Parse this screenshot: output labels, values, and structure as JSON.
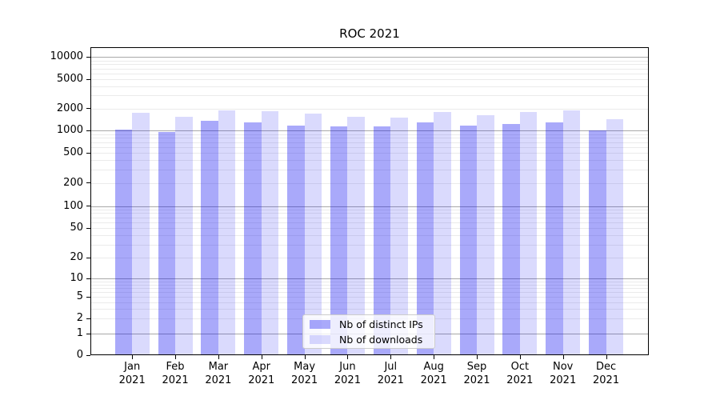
{
  "chart_data": {
    "type": "bar",
    "title": "ROC 2021",
    "categories": [
      "Jan",
      "Feb",
      "Mar",
      "Apr",
      "May",
      "Jun",
      "Jul",
      "Aug",
      "Sep",
      "Oct",
      "Nov",
      "Dec"
    ],
    "category_year": "2021",
    "series": [
      {
        "name": "Nb of distinct IPs",
        "color": "rgba(10,10,240,0.35)",
        "values": [
          1040,
          965,
          1370,
          1295,
          1180,
          1140,
          1150,
          1295,
          1160,
          1240,
          1295,
          1010
        ]
      },
      {
        "name": "Nb of downloads",
        "color": "rgba(10,10,240,0.15)",
        "values": [
          1740,
          1530,
          1900,
          1850,
          1720,
          1530,
          1500,
          1780,
          1620,
          1780,
          1870,
          1430
        ]
      }
    ],
    "y_axis": {
      "scale": "log",
      "ylim": [
        0,
        13000
      ],
      "ticks": [
        {
          "label": "10000",
          "value": 10000,
          "decade": true
        },
        {
          "label": "5000",
          "value": 5000,
          "decade": false
        },
        {
          "label": "2000",
          "value": 2000,
          "decade": false
        },
        {
          "label": "1000",
          "value": 1000,
          "decade": true
        },
        {
          "label": "500",
          "value": 500,
          "decade": false
        },
        {
          "label": "200",
          "value": 200,
          "decade": false
        },
        {
          "label": "100",
          "value": 100,
          "decade": true
        },
        {
          "label": "50",
          "value": 50,
          "decade": false
        },
        {
          "label": "20",
          "value": 20,
          "decade": false
        },
        {
          "label": "10",
          "value": 10,
          "decade": true
        },
        {
          "label": "5",
          "value": 5,
          "decade": false
        },
        {
          "label": "2",
          "value": 2,
          "decade": false
        },
        {
          "label": "1",
          "value": 1,
          "decade": true
        },
        {
          "label": "0",
          "value": 0,
          "decade": false
        }
      ],
      "grid": true
    },
    "legend": {
      "position": "lower-center",
      "entries": [
        "Nb of distinct IPs",
        "Nb of downloads"
      ]
    },
    "colors": {
      "grid_major": "#a8a8a8",
      "grid_minor": "#ebebeb",
      "spine": "#000000",
      "legend_border": "#cccccc",
      "background": "#ffffff"
    }
  }
}
